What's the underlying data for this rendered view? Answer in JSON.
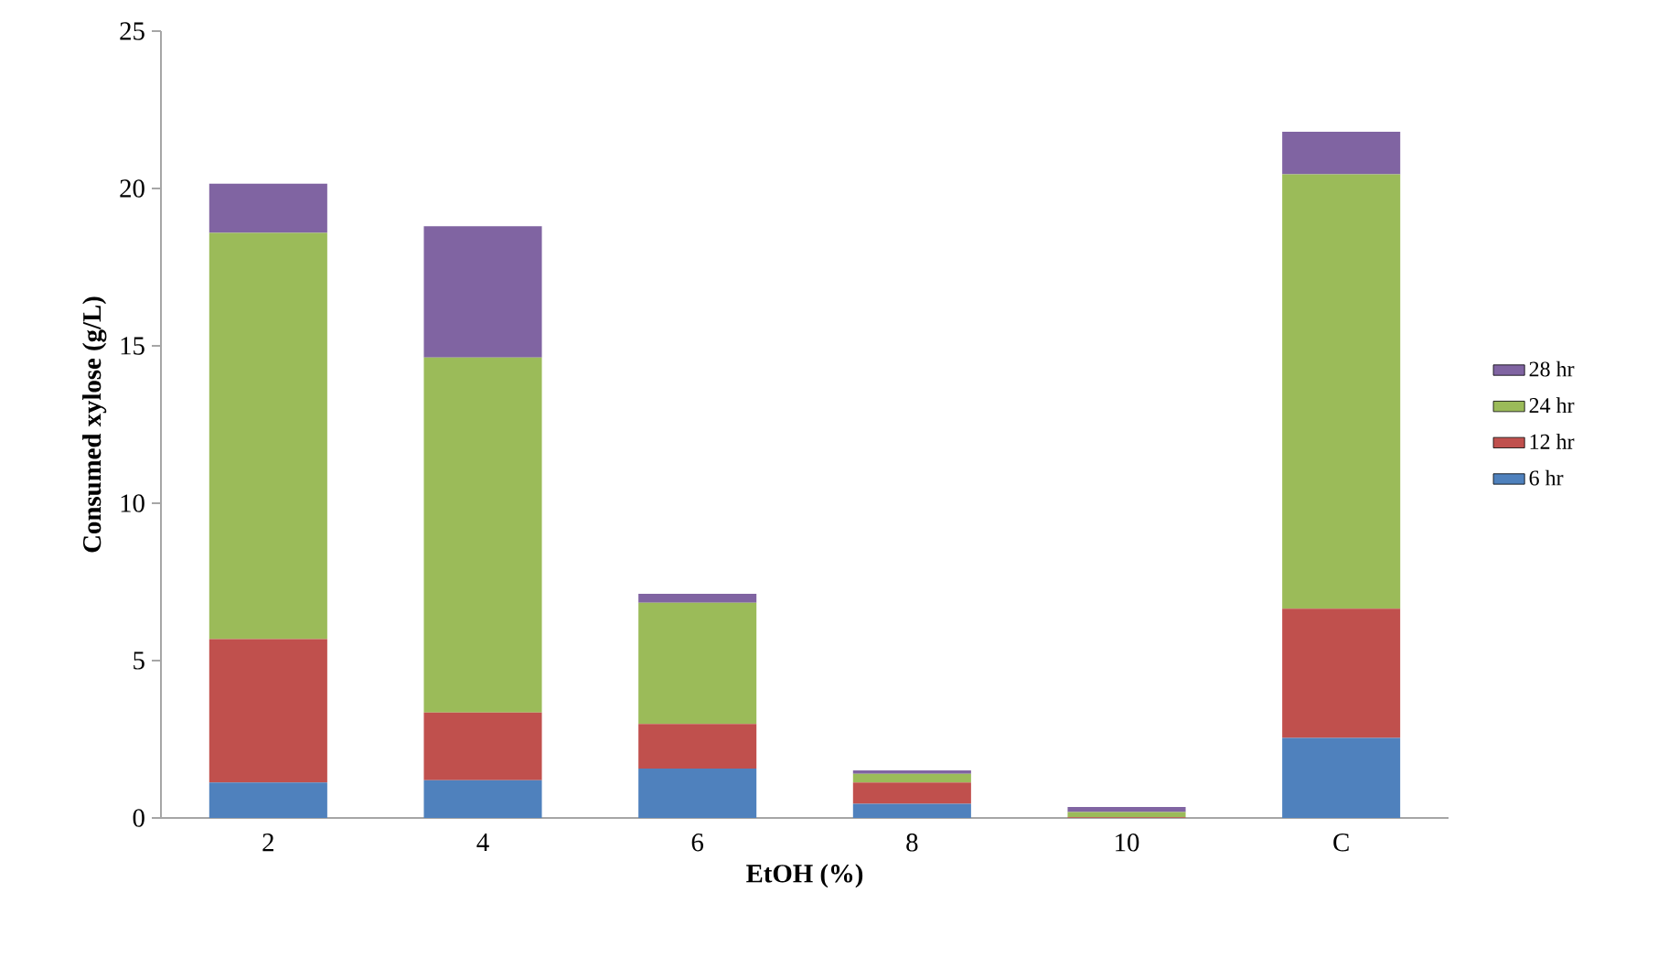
{
  "chart_data": {
    "type": "bar",
    "stacked": true,
    "xlabel": "EtOH (%)",
    "ylabel": "Consumed xylose (g/L)",
    "categories": [
      "2",
      "4",
      "6",
      "8",
      "10",
      "C"
    ],
    "ylim": [
      0,
      25
    ],
    "yticks": [
      0,
      5,
      10,
      15,
      20,
      25
    ],
    "grid": false,
    "legend": "right",
    "series": [
      {
        "name": "6 hr",
        "color": "#4f81bd",
        "values": [
          1.13,
          1.2,
          1.57,
          0.45,
          null,
          2.54
        ]
      },
      {
        "name": "12 hr",
        "color": "#c0504d",
        "values": [
          4.55,
          2.15,
          1.42,
          0.68,
          0.02,
          4.11
        ]
      },
      {
        "name": "24 hr",
        "color": "#9bbb59",
        "values": [
          12.91,
          11.28,
          3.85,
          0.27,
          0.17,
          13.8
        ]
      },
      {
        "name": "28 hr",
        "color": "#8064a2",
        "values": [
          1.56,
          4.17,
          0.28,
          0.11,
          0.16,
          1.35
        ]
      }
    ]
  }
}
